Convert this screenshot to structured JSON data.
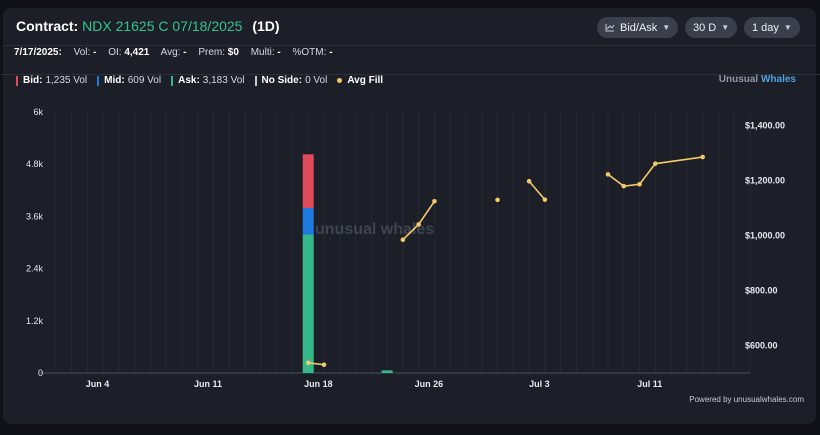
{
  "header": {
    "title_prefix": "Contract:",
    "contract": "NDX 21625 C 07/18/2025",
    "period": "(1D)",
    "controls": [
      {
        "label": "Bid/Ask",
        "icon": "chart-line-icon"
      },
      {
        "label": "30 D"
      },
      {
        "label": "1 day"
      }
    ]
  },
  "stats": {
    "date": "7/17/2025:",
    "items": [
      {
        "label": "Vol:",
        "value": "-"
      },
      {
        "label": "OI:",
        "value": "4,421"
      },
      {
        "label": "Avg:",
        "value": "-"
      },
      {
        "label": "Prem:",
        "value": "$0"
      },
      {
        "label": "Multi:",
        "value": "-"
      },
      {
        "label": "%OTM:",
        "value": "-"
      }
    ]
  },
  "legend": [
    {
      "label": "Bid:",
      "value": "1,235 Vol",
      "color": "#e04b5a"
    },
    {
      "label": "Mid:",
      "value": "609 Vol",
      "color": "#1f7ae0"
    },
    {
      "label": "Ask:",
      "value": "3,183 Vol",
      "color": "#35b98a"
    },
    {
      "label": "No Side:",
      "value": "0 Vol",
      "color": "#c9ccd4"
    },
    {
      "label": "Avg Fill",
      "value": "",
      "color": "#f3c969"
    }
  ],
  "brand": {
    "part1": "Unusual ",
    "part2": "Whales"
  },
  "watermark": "unusual whales",
  "footer": "Powered by unusualwhales.com",
  "chart_data": {
    "type": "bar",
    "x_tick_labels": [
      "Jun 4",
      "Jun 11",
      "Jun 18",
      "Jun 26",
      "Jul 3",
      "Jul 11"
    ],
    "x_range": [
      "2025-06-02",
      "2025-07-17"
    ],
    "y_left": {
      "ticks": [
        "6k",
        "4.8k",
        "3.6k",
        "2.4k",
        "1.2k",
        "0"
      ],
      "range": [
        0,
        6000
      ]
    },
    "y_right": {
      "ticks": [
        "$1,400.00",
        "$1,200.00",
        "$1,000.00",
        "$800.00",
        "$600.00"
      ],
      "range": [
        500,
        1450
      ]
    },
    "volume_bars": [
      {
        "date": "2025-06-19",
        "ask": 3183,
        "mid": 609,
        "bid": 1235
      },
      {
        "date": "2025-06-24",
        "ask": 60,
        "mid": 0,
        "bid": 0
      }
    ],
    "avg_fill_segments": [
      [
        {
          "date": "2025-06-19",
          "value": 537
        },
        {
          "date": "2025-06-20",
          "value": 530
        }
      ],
      [
        {
          "date": "2025-06-25",
          "value": 985
        },
        {
          "date": "2025-06-26",
          "value": 1041
        },
        {
          "date": "2025-06-27",
          "value": 1125
        }
      ],
      [
        {
          "date": "2025-07-01",
          "value": 1130
        }
      ],
      [
        {
          "date": "2025-07-03",
          "value": 1198
        },
        {
          "date": "2025-07-04",
          "value": 1131
        }
      ],
      [
        {
          "date": "2025-07-08",
          "value": 1223
        },
        {
          "date": "2025-07-09",
          "value": 1180
        },
        {
          "date": "2025-07-10",
          "value": 1187
        },
        {
          "date": "2025-07-11",
          "value": 1262
        },
        {
          "date": "2025-07-14",
          "value": 1286
        }
      ]
    ]
  }
}
